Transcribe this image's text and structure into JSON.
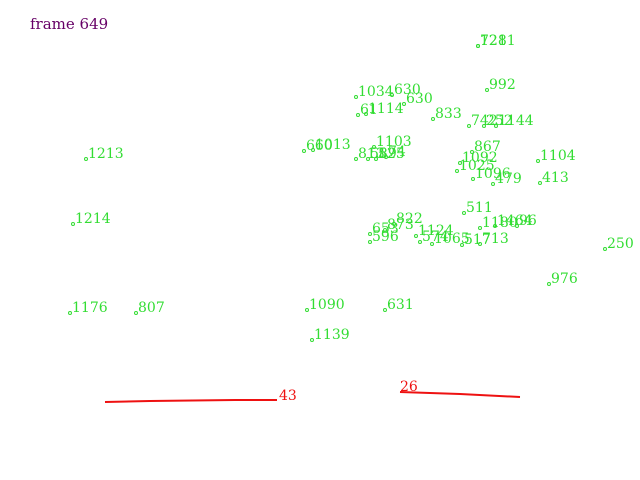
{
  "frame_label": "frame 649",
  "colors": {
    "frame_label": "#660066",
    "point": "#33dd33",
    "track": "#ee1111"
  },
  "points": [
    {
      "label": "1211"
    },
    {
      "label": "728"
    },
    {
      "label": "992"
    },
    {
      "label": "1034"
    },
    {
      "label": "630"
    },
    {
      "label": "630"
    },
    {
      "label": "61"
    },
    {
      "label": "1114"
    },
    {
      "label": "833"
    },
    {
      "label": "742"
    },
    {
      "label": "252"
    },
    {
      "label": "1144"
    },
    {
      "label": "660"
    },
    {
      "label": "1013"
    },
    {
      "label": "1103"
    },
    {
      "label": "813"
    },
    {
      "label": "589"
    },
    {
      "label": "525"
    },
    {
      "label": "74"
    },
    {
      "label": "867"
    },
    {
      "label": "1213"
    },
    {
      "label": "1104"
    },
    {
      "label": "1092"
    },
    {
      "label": "1096"
    },
    {
      "label": "1025"
    },
    {
      "label": "479"
    },
    {
      "label": "413"
    },
    {
      "label": "511"
    },
    {
      "label": "1214"
    },
    {
      "label": "822"
    },
    {
      "label": "1180"
    },
    {
      "label": "1464"
    },
    {
      "label": "96"
    },
    {
      "label": "653"
    },
    {
      "label": "873"
    },
    {
      "label": "1124"
    },
    {
      "label": "596"
    },
    {
      "label": "574"
    },
    {
      "label": "1065"
    },
    {
      "label": "517"
    },
    {
      "label": "713"
    },
    {
      "label": "250"
    },
    {
      "label": "976"
    },
    {
      "label": "1090"
    },
    {
      "label": "631"
    },
    {
      "label": "1176"
    },
    {
      "label": "807"
    },
    {
      "label": "1139"
    }
  ],
  "tracks": [
    {
      "label": "43"
    },
    {
      "label": "26"
    }
  ]
}
